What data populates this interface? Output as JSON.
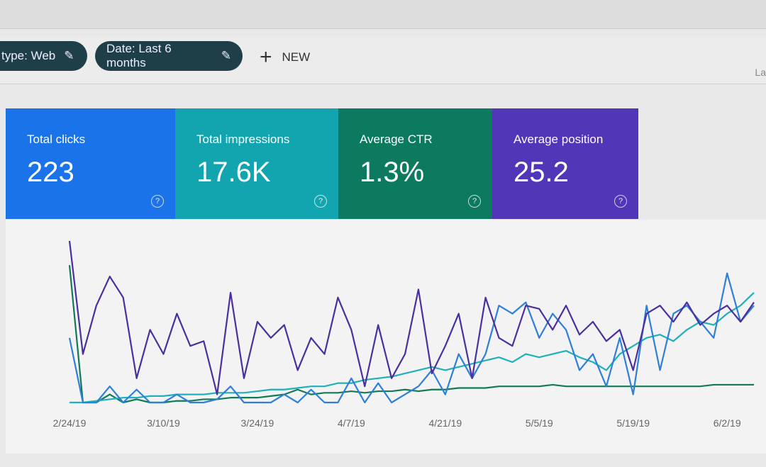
{
  "filters": {
    "chips": [
      {
        "label": "type: Web",
        "icon": "pencil-icon"
      },
      {
        "label": "Date: Last 6 months",
        "icon": "pencil-icon"
      }
    ],
    "new_label": "NEW",
    "new_icon": "plus-icon",
    "edge_text": "La"
  },
  "cards": [
    {
      "label": "Total clicks",
      "value": "223",
      "color": "#1a73e8",
      "icon": "help-icon"
    },
    {
      "label": "Total impressions",
      "value": "17.6K",
      "color": "#12a5b0",
      "icon": "help-icon"
    },
    {
      "label": "Average CTR",
      "value": "1.3%",
      "color": "#0b7a5e",
      "icon": "help-icon"
    },
    {
      "label": "Average position",
      "value": "25.2",
      "color": "#5136b8",
      "icon": "help-icon"
    }
  ],
  "chart_data": {
    "type": "line",
    "grid": false,
    "x_ticks": [
      "2/24/19",
      "3/10/19",
      "3/24/19",
      "4/7/19",
      "4/21/19",
      "5/5/19",
      "5/19/19",
      "6/2/19"
    ],
    "x": [
      "2/24",
      "2/26",
      "2/28",
      "3/2",
      "3/4",
      "3/6",
      "3/8",
      "3/10",
      "3/12",
      "3/14",
      "3/16",
      "3/18",
      "3/20",
      "3/22",
      "3/24",
      "3/26",
      "3/28",
      "3/30",
      "4/1",
      "4/3",
      "4/5",
      "4/7",
      "4/9",
      "4/11",
      "4/13",
      "4/15",
      "4/17",
      "4/19",
      "4/21",
      "4/23",
      "4/25",
      "4/27",
      "4/29",
      "5/1",
      "5/3",
      "5/5",
      "5/7",
      "5/9",
      "5/11",
      "5/13",
      "5/15",
      "5/17",
      "5/19",
      "5/21",
      "5/23",
      "5/25",
      "5/27",
      "5/29",
      "5/31",
      "6/2",
      "6/4",
      "6/6"
    ],
    "series": [
      {
        "color": "#4b2f9e",
        "values": [
          100,
          30,
          60,
          78,
          65,
          15,
          45,
          30,
          55,
          35,
          38,
          5,
          68,
          15,
          50,
          40,
          48,
          20,
          40,
          30,
          65,
          45,
          10,
          48,
          15,
          30,
          70,
          18,
          35,
          55,
          15,
          65,
          40,
          35,
          60,
          58,
          45,
          60,
          42,
          50,
          38,
          45,
          20,
          55,
          60,
          50,
          62,
          48,
          55,
          60,
          50,
          62
        ]
      },
      {
        "color": "#2f7fd8",
        "values": [
          40,
          0,
          0,
          10,
          0,
          8,
          0,
          0,
          5,
          0,
          0,
          2,
          10,
          0,
          0,
          0,
          5,
          0,
          8,
          0,
          0,
          15,
          0,
          12,
          0,
          5,
          10,
          20,
          5,
          30,
          15,
          30,
          60,
          55,
          62,
          40,
          55,
          45,
          20,
          30,
          10,
          40,
          5,
          60,
          20,
          55,
          60,
          50,
          40,
          80,
          50,
          60
        ]
      },
      {
        "color": "#1fb0bc",
        "values": [
          0,
          0,
          1,
          2,
          3,
          3,
          4,
          4,
          5,
          5,
          5,
          6,
          6,
          6,
          7,
          8,
          8,
          9,
          10,
          10,
          12,
          12,
          14,
          15,
          16,
          18,
          20,
          22,
          20,
          22,
          24,
          26,
          28,
          25,
          30,
          28,
          30,
          32,
          28,
          25,
          20,
          30,
          35,
          40,
          42,
          38,
          45,
          50,
          48,
          55,
          60,
          68
        ]
      },
      {
        "color": "#137a55",
        "values": [
          85,
          0,
          0,
          5,
          0,
          2,
          0,
          0,
          1,
          1,
          2,
          2,
          3,
          3,
          3,
          4,
          5,
          8,
          5,
          6,
          6,
          7,
          6,
          7,
          7,
          8,
          7,
          8,
          8,
          9,
          9,
          9,
          10,
          10,
          10,
          10,
          11,
          10,
          10,
          10,
          10,
          10,
          10,
          10,
          10,
          10,
          10,
          10,
          11,
          11,
          11,
          11
        ]
      }
    ]
  }
}
